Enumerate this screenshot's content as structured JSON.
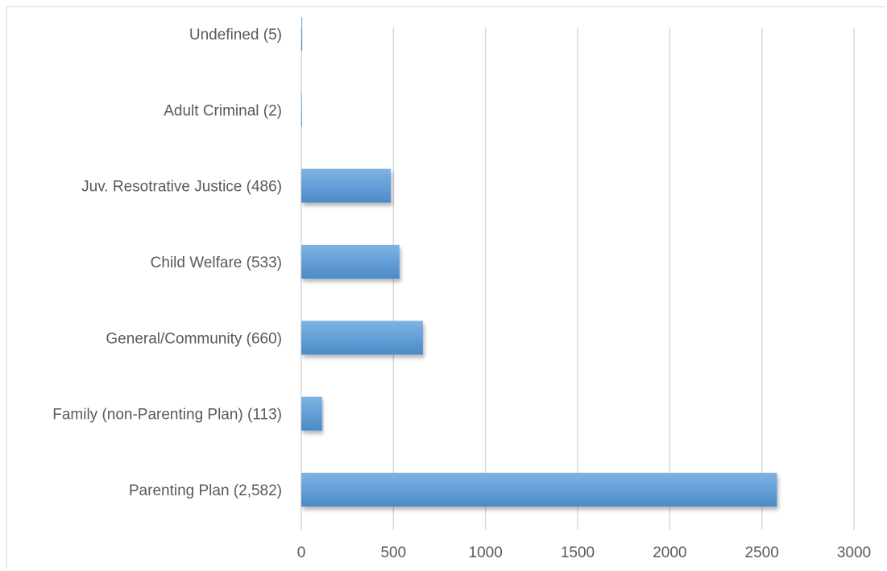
{
  "chart_data": {
    "type": "bar",
    "orientation": "horizontal",
    "title": "",
    "xlabel": "",
    "ylabel": "",
    "categories": [
      "Parenting Plan (2,582)",
      "Family (non-Parenting Plan) (113)",
      "General/Community (660)",
      "Child Welfare (533)",
      "Juv. Resotrative Justice (486)",
      "Adult Criminal (2)",
      "Undefined (5)"
    ],
    "values": [
      2582,
      113,
      660,
      533,
      486,
      2,
      5
    ],
    "xlim": [
      0,
      3000
    ],
    "xticks": [
      "0",
      "500",
      "1000",
      "1500",
      "2000",
      "2500",
      "3000"
    ],
    "grid": true,
    "legend": "none",
    "bar_color": "#5b9bd5",
    "bar_color_light": "#7fb3e3",
    "bar_color_dark": "#4a8bc9"
  }
}
